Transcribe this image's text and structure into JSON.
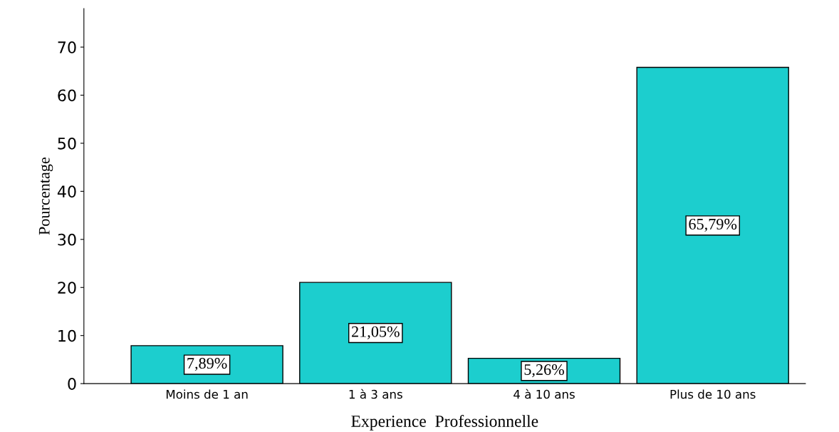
{
  "chart_data": {
    "type": "bar",
    "xlabel": "Experience  Professionnelle",
    "ylabel": "Pourcentage",
    "categories": [
      "Moins de 1 an",
      "1 à 3 ans",
      "4 à 10 ans",
      "Plus de 10 ans"
    ],
    "values": [
      7.89,
      21.05,
      5.26,
      65.79
    ],
    "color": "#1ccece",
    "value_labels": [
      "7,89%",
      "21,05%",
      "5,26%",
      "65,79%"
    ],
    "ylim": [
      0,
      78
    ],
    "yticks": [
      0,
      10,
      20,
      30,
      40,
      50,
      60,
      70
    ],
    "grid": false,
    "legend": false
  }
}
